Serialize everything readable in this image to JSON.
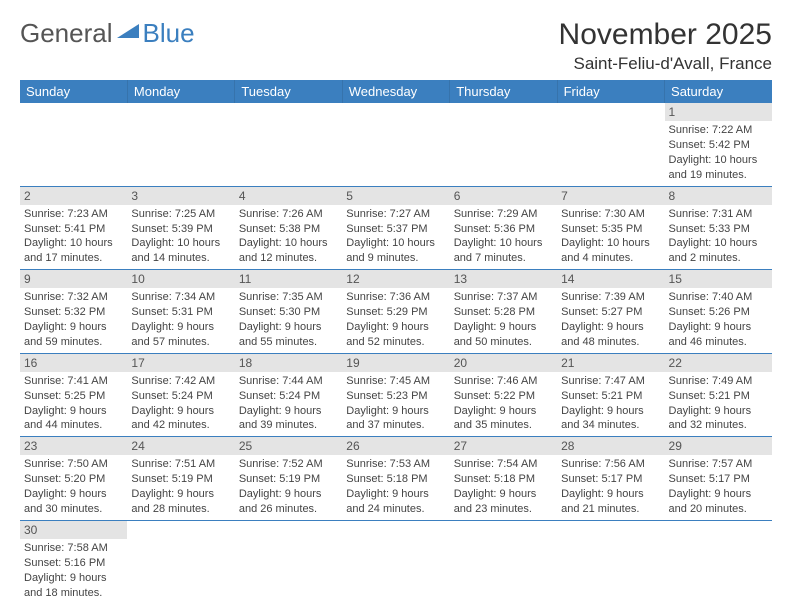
{
  "logo": {
    "text1": "General",
    "text2": "Blue",
    "icon": "triangle-flag-icon",
    "color_accent": "#3b7fbf"
  },
  "title": "November 2025",
  "location": "Saint-Feliu-d'Avall, France",
  "day_headers": [
    "Sunday",
    "Monday",
    "Tuesday",
    "Wednesday",
    "Thursday",
    "Friday",
    "Saturday"
  ],
  "header_bg": "#3b7fbf",
  "header_fg": "#ffffff",
  "daynum_bg": "#e4e4e4",
  "cell_border": "#3b7fbf",
  "weeks": [
    [
      null,
      null,
      null,
      null,
      null,
      null,
      {
        "n": "1",
        "sr": "7:22 AM",
        "ss": "5:42 PM",
        "dl": "10 hours and 19 minutes."
      }
    ],
    [
      {
        "n": "2",
        "sr": "7:23 AM",
        "ss": "5:41 PM",
        "dl": "10 hours and 17 minutes."
      },
      {
        "n": "3",
        "sr": "7:25 AM",
        "ss": "5:39 PM",
        "dl": "10 hours and 14 minutes."
      },
      {
        "n": "4",
        "sr": "7:26 AM",
        "ss": "5:38 PM",
        "dl": "10 hours and 12 minutes."
      },
      {
        "n": "5",
        "sr": "7:27 AM",
        "ss": "5:37 PM",
        "dl": "10 hours and 9 minutes."
      },
      {
        "n": "6",
        "sr": "7:29 AM",
        "ss": "5:36 PM",
        "dl": "10 hours and 7 minutes."
      },
      {
        "n": "7",
        "sr": "7:30 AM",
        "ss": "5:35 PM",
        "dl": "10 hours and 4 minutes."
      },
      {
        "n": "8",
        "sr": "7:31 AM",
        "ss": "5:33 PM",
        "dl": "10 hours and 2 minutes."
      }
    ],
    [
      {
        "n": "9",
        "sr": "7:32 AM",
        "ss": "5:32 PM",
        "dl": "9 hours and 59 minutes."
      },
      {
        "n": "10",
        "sr": "7:34 AM",
        "ss": "5:31 PM",
        "dl": "9 hours and 57 minutes."
      },
      {
        "n": "11",
        "sr": "7:35 AM",
        "ss": "5:30 PM",
        "dl": "9 hours and 55 minutes."
      },
      {
        "n": "12",
        "sr": "7:36 AM",
        "ss": "5:29 PM",
        "dl": "9 hours and 52 minutes."
      },
      {
        "n": "13",
        "sr": "7:37 AM",
        "ss": "5:28 PM",
        "dl": "9 hours and 50 minutes."
      },
      {
        "n": "14",
        "sr": "7:39 AM",
        "ss": "5:27 PM",
        "dl": "9 hours and 48 minutes."
      },
      {
        "n": "15",
        "sr": "7:40 AM",
        "ss": "5:26 PM",
        "dl": "9 hours and 46 minutes."
      }
    ],
    [
      {
        "n": "16",
        "sr": "7:41 AM",
        "ss": "5:25 PM",
        "dl": "9 hours and 44 minutes."
      },
      {
        "n": "17",
        "sr": "7:42 AM",
        "ss": "5:24 PM",
        "dl": "9 hours and 42 minutes."
      },
      {
        "n": "18",
        "sr": "7:44 AM",
        "ss": "5:24 PM",
        "dl": "9 hours and 39 minutes."
      },
      {
        "n": "19",
        "sr": "7:45 AM",
        "ss": "5:23 PM",
        "dl": "9 hours and 37 minutes."
      },
      {
        "n": "20",
        "sr": "7:46 AM",
        "ss": "5:22 PM",
        "dl": "9 hours and 35 minutes."
      },
      {
        "n": "21",
        "sr": "7:47 AM",
        "ss": "5:21 PM",
        "dl": "9 hours and 34 minutes."
      },
      {
        "n": "22",
        "sr": "7:49 AM",
        "ss": "5:21 PM",
        "dl": "9 hours and 32 minutes."
      }
    ],
    [
      {
        "n": "23",
        "sr": "7:50 AM",
        "ss": "5:20 PM",
        "dl": "9 hours and 30 minutes."
      },
      {
        "n": "24",
        "sr": "7:51 AM",
        "ss": "5:19 PM",
        "dl": "9 hours and 28 minutes."
      },
      {
        "n": "25",
        "sr": "7:52 AM",
        "ss": "5:19 PM",
        "dl": "9 hours and 26 minutes."
      },
      {
        "n": "26",
        "sr": "7:53 AM",
        "ss": "5:18 PM",
        "dl": "9 hours and 24 minutes."
      },
      {
        "n": "27",
        "sr": "7:54 AM",
        "ss": "5:18 PM",
        "dl": "9 hours and 23 minutes."
      },
      {
        "n": "28",
        "sr": "7:56 AM",
        "ss": "5:17 PM",
        "dl": "9 hours and 21 minutes."
      },
      {
        "n": "29",
        "sr": "7:57 AM",
        "ss": "5:17 PM",
        "dl": "9 hours and 20 minutes."
      }
    ],
    [
      {
        "n": "30",
        "sr": "7:58 AM",
        "ss": "5:16 PM",
        "dl": "9 hours and 18 minutes."
      },
      null,
      null,
      null,
      null,
      null,
      null
    ]
  ],
  "labels": {
    "sunrise": "Sunrise: ",
    "sunset": "Sunset: ",
    "daylight": "Daylight: "
  }
}
